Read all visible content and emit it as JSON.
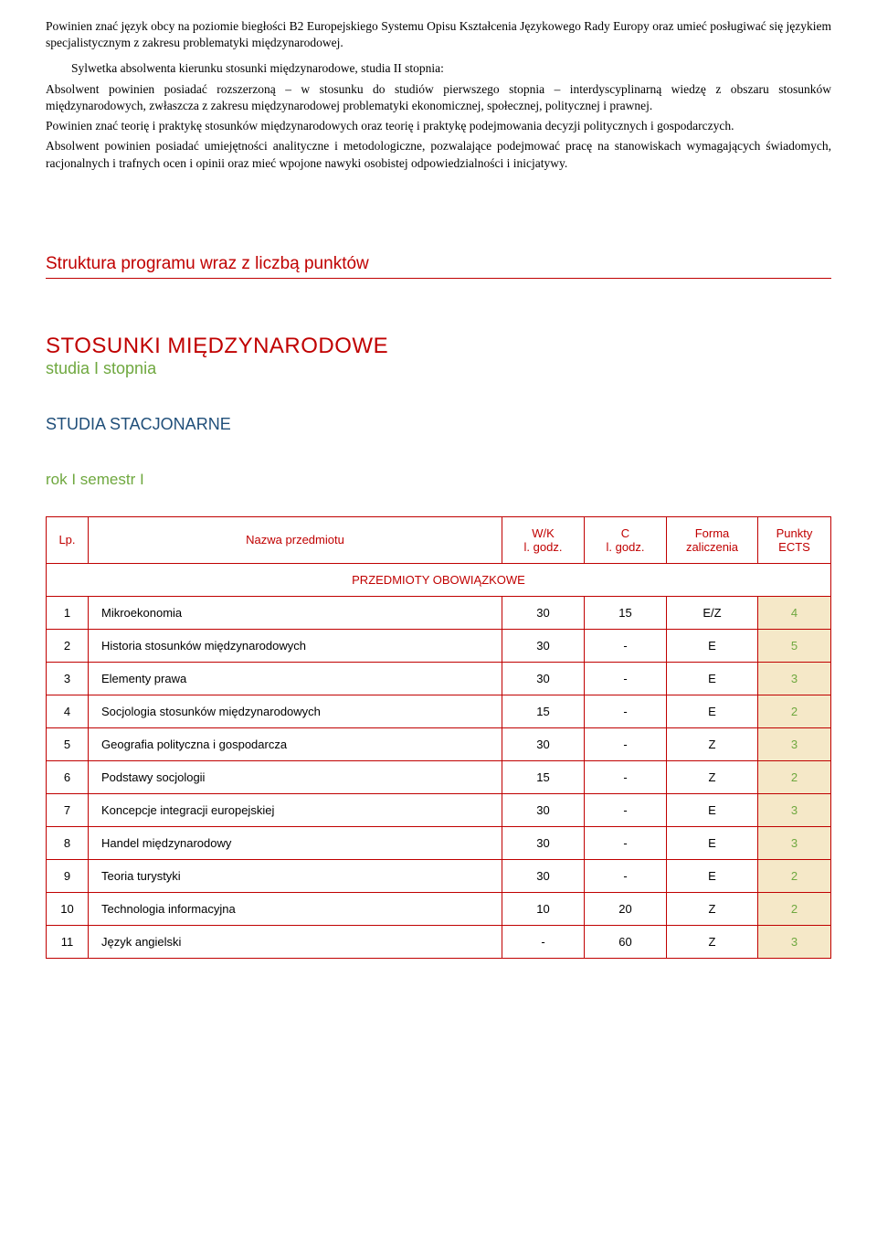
{
  "paragraphs": {
    "p1": "Powinien znać język obcy na poziomie biegłości B2 Europejskiego Systemu Opisu Kształcenia Językowego Rady Europy oraz umieć posługiwać się językiem specjalistycznym z zakresu problematyki międzynarodowej.",
    "heading2": "Sylwetka absolwenta kierunku stosunki międzynarodowe, studia II stopnia:",
    "p2": "Absolwent powinien posiadać rozszerzoną – w stosunku do studiów pierwszego stopnia – interdyscyplinarną wiedzę z obszaru stosunków międzynarodowych, zwłaszcza z zakresu międzynarodowej problematyki ekonomicznej, społecznej, politycznej i prawnej.",
    "p3": "Powinien znać teorię i praktykę stosunków międzynarodowych oraz teorię i praktykę podejmowania decyzji politycznych i gospodarczych.",
    "p4": "Absolwent powinien posiadać umiejętności analityczne i metodologiczne, pozwalające podejmować pracę na stanowiskach wymagających świadomych, racjonalnych i trafnych ocen i opinii oraz mieć wpojone nawyki osobistej odpowiedzialności i inicjatywy."
  },
  "struct_heading": "Struktura programu wraz z liczbą punktów",
  "title": "STOSUNKI MIĘDZYNARODOWE",
  "degree": "studia I stopnia",
  "mode": "STUDIA STACJONARNE",
  "semester": "rok I semestr I",
  "table": {
    "headers": {
      "lp": "Lp.",
      "name": "Nazwa przedmiotu",
      "wk": "W/K",
      "wk_sub": "l. godz.",
      "c": "C",
      "c_sub": "l. godz.",
      "forma": "Forma",
      "forma_sub": "zaliczenia",
      "ects": "Punkty",
      "ects_sub": "ECTS"
    },
    "section_label": "PRZEDMIOTY OBOWIĄZKOWE",
    "rows": [
      {
        "lp": "1",
        "name": "Mikroekonomia",
        "wk": "30",
        "c": "15",
        "forma": "E/Z",
        "ects": "4"
      },
      {
        "lp": "2",
        "name": "Historia stosunków międzynarodowych",
        "wk": "30",
        "c": "-",
        "forma": "E",
        "ects": "5"
      },
      {
        "lp": "3",
        "name": "Elementy prawa",
        "wk": "30",
        "c": "-",
        "forma": "E",
        "ects": "3"
      },
      {
        "lp": "4",
        "name": "Socjologia stosunków międzynarodowych",
        "wk": "15",
        "c": "-",
        "forma": "E",
        "ects": "2"
      },
      {
        "lp": "5",
        "name": "Geografia polityczna i gospodarcza",
        "wk": "30",
        "c": "-",
        "forma": "Z",
        "ects": "3"
      },
      {
        "lp": "6",
        "name": "Podstawy socjologii",
        "wk": "15",
        "c": "-",
        "forma": "Z",
        "ects": "2"
      },
      {
        "lp": "7",
        "name": "Koncepcje integracji europejskiej",
        "wk": "30",
        "c": "-",
        "forma": "E",
        "ects": "3"
      },
      {
        "lp": "8",
        "name": "Handel międzynarodowy",
        "wk": "30",
        "c": "-",
        "forma": "E",
        "ects": "3"
      },
      {
        "lp": "9",
        "name": "Teoria turystyki",
        "wk": "30",
        "c": "-",
        "forma": "E",
        "ects": "2"
      },
      {
        "lp": "10",
        "name": "Technologia informacyjna",
        "wk": "10",
        "c": "20",
        "forma": "Z",
        "ects": "2"
      },
      {
        "lp": "11",
        "name": "Język angielski",
        "wk": "-",
        "c": "60",
        "forma": "Z",
        "ects": "3"
      }
    ]
  },
  "colors": {
    "accent_red": "#c00000",
    "green": "#6fa83f",
    "blue": "#1f4e79",
    "ects_bg": "#f5e8c8",
    "background": "#ffffff"
  }
}
